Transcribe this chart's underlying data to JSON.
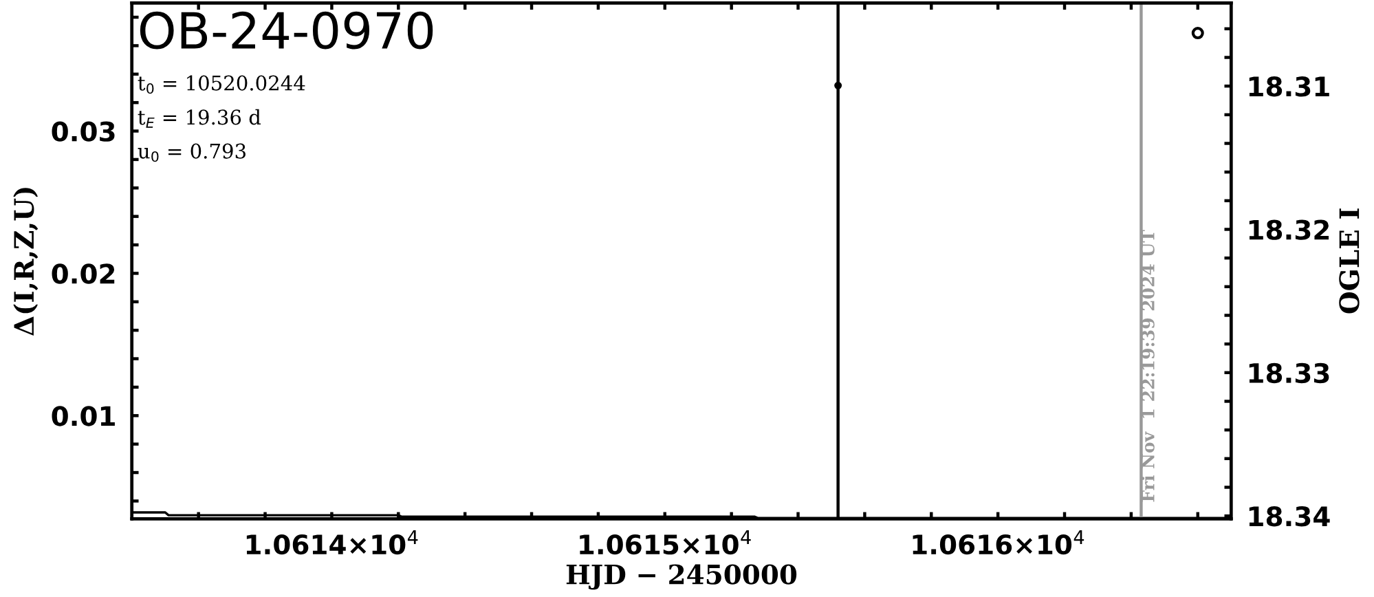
{
  "chart_data": {
    "type": "line",
    "title": "OB-24-0970",
    "xlabel": "HJD − 2450000",
    "ylabel": "Δ(I,R,Z,U)",
    "y2label": "OGLE I",
    "xlim": [
      10613.4,
      10616.7
    ],
    "xticks": [
      {
        "value": 10613.6,
        "label": null
      },
      {
        "value": 10613.8,
        "label": null
      },
      {
        "value": 10614,
        "label": "1.0614×10$^{4}$"
      },
      {
        "value": 10614.2,
        "label": null
      },
      {
        "value": 10614.4,
        "label": null
      },
      {
        "value": 10614.6,
        "label": null
      },
      {
        "value": 10614.8,
        "label": null
      },
      {
        "value": 10615,
        "label": "1.0615×10$^{4}$"
      },
      {
        "value": 10615.2,
        "label": null
      },
      {
        "value": 10615.4,
        "label": null
      },
      {
        "value": 10615.6,
        "label": null
      },
      {
        "value": 10615.8,
        "label": null
      },
      {
        "value": 10616,
        "label": "1.0616×10$^{4}$"
      },
      {
        "value": 10616.2,
        "label": null
      },
      {
        "value": 10616.4,
        "label": null
      },
      {
        "value": 10616.6,
        "label": null
      }
    ],
    "ylim": [
      0.00275,
      0.039
    ],
    "yticks": [
      {
        "value": 0.004,
        "label": null
      },
      {
        "value": 0.006,
        "label": null
      },
      {
        "value": 0.008,
        "label": null
      },
      0.01,
      {
        "value": 0.012,
        "label": null
      },
      {
        "value": 0.014,
        "label": null
      },
      {
        "value": 0.016,
        "label": null
      },
      {
        "value": 0.018,
        "label": null
      },
      0.02,
      {
        "value": 0.022,
        "label": null
      },
      {
        "value": 0.024,
        "label": null
      },
      {
        "value": 0.026,
        "label": null
      },
      {
        "value": 0.028,
        "label": null
      },
      0.03,
      {
        "value": 0.032,
        "label": null
      },
      {
        "value": 0.034,
        "label": null
      },
      {
        "value": 0.036,
        "label": null
      },
      {
        "value": 0.038,
        "label": null
      }
    ],
    "y2lim": [
      18.3402,
      18.3042
    ],
    "y2ticks": [
      {
        "value": 18.306,
        "label": null
      },
      {
        "value": 18.308,
        "label": null
      },
      18.31,
      {
        "value": 18.312,
        "label": null
      },
      {
        "value": 18.314,
        "label": null
      },
      {
        "value": 18.316,
        "label": null
      },
      {
        "value": 18.318,
        "label": null
      },
      18.32,
      {
        "value": 18.322,
        "label": null
      },
      {
        "value": 18.324,
        "label": null
      },
      {
        "value": 18.326,
        "label": null
      },
      {
        "value": 18.328,
        "label": null
      },
      18.33,
      {
        "value": 18.332,
        "label": null
      },
      {
        "value": 18.334,
        "label": null
      },
      {
        "value": 18.336,
        "label": null
      },
      {
        "value": 18.338,
        "label": null
      },
      18.34
    ],
    "series": [
      {
        "color": "#000000",
        "x": [
          10613.4,
          10613.5,
          10613.51,
          10614.2,
          10614.21,
          10615.27,
          10615.28,
          10616.7
        ],
        "values": [
          0.0032,
          0.0032,
          0.003,
          0.003,
          0.0029,
          0.0029,
          0.0028,
          0.0028
        ]
      },
      {
        "type": "scatter",
        "color": "#000000",
        "axis": "y2",
        "x": [
          10616.6
        ],
        "values": [
          18.3063
        ]
      },
      {
        "type": "scatter",
        "color": "#000000",
        "x": [
          10615.52
        ],
        "values": [
          0.0332
        ]
      }
    ],
    "ref_lines": [
      {
        "axis": "x",
        "value": 10615.52,
        "color": "#000000"
      },
      {
        "axis": "x",
        "value": 10616.43,
        "color": "#999999"
      }
    ],
    "annotations": [
      "t$_{0}$ = 10520.0244",
      "t$_{E}$ = 19.36 d",
      "u$_{0}$ = 0.793",
      {
        "text": "Fri Nov  1 22:19:39 2024 UT",
        "x": 10616.43
      }
    ],
    "grid": false,
    "legend": false
  }
}
